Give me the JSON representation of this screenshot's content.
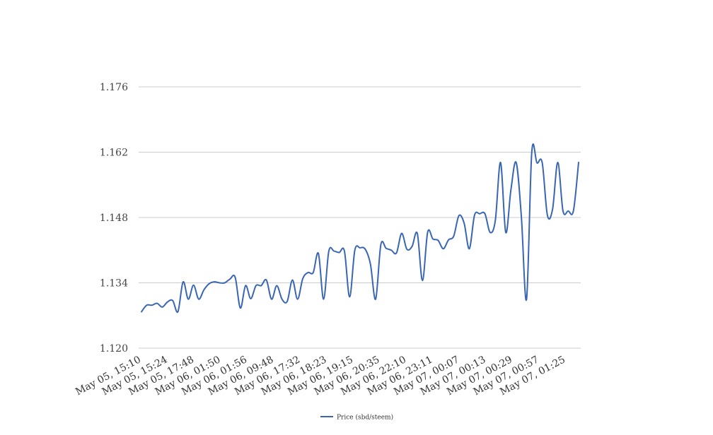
{
  "colors": {
    "line": "#3966b3",
    "grid": "#cccccc",
    "background": "#ffffff"
  },
  "chart_data": {
    "type": "line",
    "title": "",
    "xlabel": "",
    "ylabel": "",
    "ylim": [
      1.12,
      1.176
    ],
    "y_ticks": [
      "1.120",
      "1.134",
      "1.148",
      "1.162",
      "1.176"
    ],
    "grid": "horizontal",
    "legend_position": "bottom-center",
    "x_tick_labels": [
      "May 05, 15:10",
      "May 05, 15:24",
      "May 05, 17:48",
      "May 06, 01:50",
      "May 06, 01:56",
      "May 06, 09:48",
      "May 06, 17:32",
      "May 06, 18:23",
      "May 06, 19:15",
      "May 06, 20:35",
      "May 06, 22:10",
      "May 06, 23:11",
      "May 07, 00:07",
      "May 07, 00:13",
      "May 07, 00:29",
      "May 07, 00:57",
      "May 07, 01:25"
    ],
    "series": [
      {
        "name": "Price (sbd/steem)",
        "values": [
          1.1278,
          1.1292,
          1.1292,
          1.1296,
          1.1288,
          1.1299,
          1.1302,
          1.1278,
          1.1342,
          1.1305,
          1.1335,
          1.1305,
          1.1325,
          1.1338,
          1.1342,
          1.134,
          1.134,
          1.1348,
          1.1352,
          1.1286,
          1.1334,
          1.1306,
          1.1334,
          1.1334,
          1.1346,
          1.1305,
          1.1334,
          1.1305,
          1.13,
          1.1346,
          1.1305,
          1.1349,
          1.1362,
          1.1362,
          1.1403,
          1.1305,
          1.1408,
          1.1408,
          1.1405,
          1.1408,
          1.131,
          1.141,
          1.1415,
          1.1412,
          1.138,
          1.1305,
          1.1422,
          1.1414,
          1.141,
          1.1404,
          1.1446,
          1.1412,
          1.1418,
          1.1446,
          1.1345,
          1.1449,
          1.1434,
          1.1431,
          1.1413,
          1.1432,
          1.144,
          1.1484,
          1.1468,
          1.1413,
          1.1485,
          1.1488,
          1.1488,
          1.1448,
          1.1474,
          1.1598,
          1.1448,
          1.154,
          1.1598,
          1.1482,
          1.1305,
          1.162,
          1.1597,
          1.1598,
          1.1485,
          1.1498,
          1.1598,
          1.1494,
          1.1494,
          1.1494,
          1.1598
        ]
      }
    ]
  }
}
